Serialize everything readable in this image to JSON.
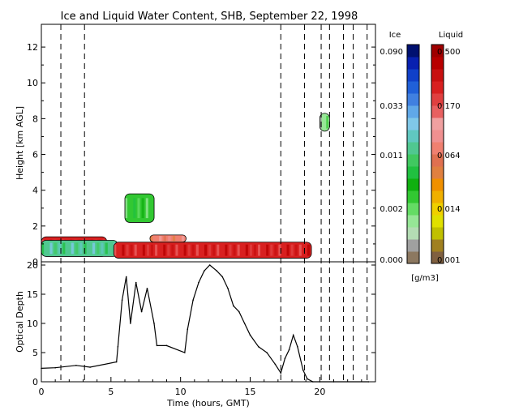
{
  "title": "Ice and Liquid Water Content, SHB, September 22, 1998",
  "chart_data": [
    {
      "type": "heatmap",
      "title": "Ice and Liquid Water Content, SHB, September 22, 1998",
      "ylabel": "Height [km AGL]",
      "xlim": [
        0,
        24
      ],
      "ylim": [
        0,
        13
      ],
      "yticks": [
        "0",
        "2",
        "4",
        "6",
        "8",
        "10",
        "12"
      ],
      "dashed_time_lines": [
        1.4,
        3.1,
        17.2,
        18.9,
        20.1,
        20.7,
        21.7,
        22.4,
        23.4
      ],
      "cloud_regions": [
        {
          "phase": "liquid",
          "x": [
            0,
            4.7
          ],
          "y": [
            0.3,
            1.4
          ],
          "level": "high"
        },
        {
          "phase": "ice",
          "x": [
            0,
            5.5
          ],
          "y": [
            0.3,
            1.2
          ],
          "level": "mid"
        },
        {
          "phase": "liquid",
          "x": [
            5.2,
            19.4
          ],
          "y": [
            0.2,
            1.1
          ],
          "level": "high"
        },
        {
          "phase": "ice",
          "x": [
            6.0,
            8.1
          ],
          "y": [
            2.2,
            3.8
          ],
          "level": "low"
        },
        {
          "phase": "liquid",
          "x": [
            7.8,
            10.4
          ],
          "y": [
            1.1,
            1.5
          ],
          "level": "mid"
        },
        {
          "phase": "ice",
          "x": [
            20.0,
            20.7
          ],
          "y": [
            7.3,
            8.3
          ],
          "level": "lowest"
        }
      ]
    },
    {
      "type": "line",
      "ylabel": "Optical Depth",
      "xlabel": "Time (hours, GMT)",
      "xlim": [
        0,
        24
      ],
      "ylim": [
        0,
        20
      ],
      "xticks": [
        "0",
        "5",
        "10",
        "15",
        "20"
      ],
      "yticks": [
        "0",
        "5",
        "10",
        "15",
        "20"
      ],
      "x": [
        0,
        1,
        2.5,
        3.5,
        5.4,
        5.5,
        5.8,
        6.1,
        6.4,
        6.8,
        7.2,
        7.6,
        8.1,
        8.3,
        9,
        10.3,
        10.5,
        10.9,
        11.3,
        11.7,
        12.1,
        12.6,
        13,
        13.4,
        13.8,
        14.2,
        14.6,
        15,
        15.6,
        16.2,
        16.8,
        17.2,
        17.5,
        17.8,
        18.1,
        18.4,
        18.8,
        19.1,
        19.5,
        20,
        21,
        23.5
      ],
      "y": [
        2.3,
        2.4,
        2.8,
        2.5,
        3.4,
        6,
        14,
        18,
        10,
        17,
        12,
        16,
        10,
        6.2,
        6.2,
        5,
        9,
        14,
        17,
        19,
        20,
        19,
        18,
        16,
        13,
        12,
        10,
        8,
        6,
        5,
        3,
        1.5,
        4,
        5.5,
        8,
        6,
        2,
        0.5,
        0,
        0,
        0,
        0
      ]
    }
  ],
  "colorbar": {
    "ice_label": "Ice",
    "liquid_label": "Liquid",
    "unit": "[g/m3]",
    "ice_ticks": [
      "0.090",
      "0.033",
      "0.011",
      "0.002",
      "0.000"
    ],
    "liquid_ticks": [
      "0.500",
      "0.170",
      "0.064",
      "0.014",
      "0.001"
    ],
    "ice_colors": [
      "#8c7860",
      "#a0a0a0",
      "#b4dcb4",
      "#96e696",
      "#64dc64",
      "#32c832",
      "#10b010",
      "#20c040",
      "#40c860",
      "#50c890",
      "#60c8c0",
      "#80c8e8",
      "#60a8e8",
      "#4080e0",
      "#2060d8",
      "#1040c8",
      "#0820b0",
      "#001070"
    ],
    "liquid_colors": [
      "#806040",
      "#a08020",
      "#c0c000",
      "#e0e000",
      "#f0d000",
      "#f0b000",
      "#f09000",
      "#e08040",
      "#e07050",
      "#f08070",
      "#f09090",
      "#f0a0a0",
      "#e86060",
      "#e04040",
      "#d82020",
      "#c81010",
      "#b80000",
      "#a00000"
    ]
  }
}
